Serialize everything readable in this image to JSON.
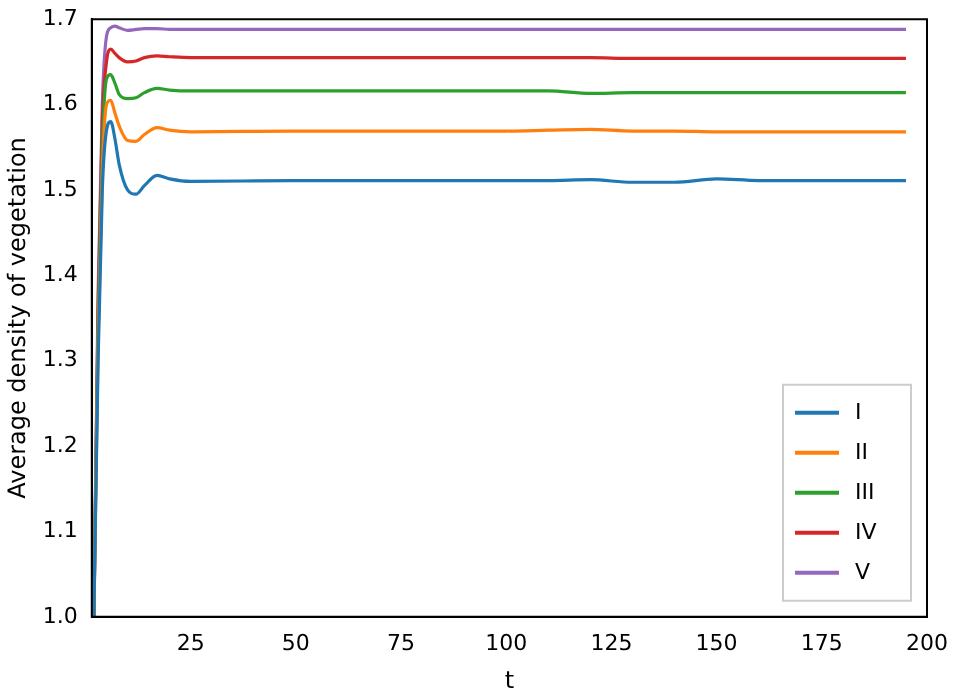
{
  "chart_data": {
    "type": "line",
    "xlabel": "t",
    "ylabel": "Average density of vegetation",
    "x": [
      2,
      3,
      4,
      5,
      6,
      7,
      8,
      10,
      12,
      14,
      17,
      20,
      25,
      50,
      100,
      110,
      120,
      130,
      140,
      150,
      160,
      195
    ],
    "xlim": [
      1.5,
      200
    ],
    "xticks": [
      25,
      50,
      75,
      100,
      125,
      150,
      175,
      200
    ],
    "ylim": [
      1.0,
      1.7
    ],
    "yticks": [
      {
        "value": 1.0,
        "label": "1.0"
      },
      {
        "value": 1.1,
        "label": "1.1"
      },
      {
        "value": 1.2,
        "label": "1.2"
      },
      {
        "value": 1.3,
        "label": "1.3"
      },
      {
        "value": 1.4,
        "label": "1.4"
      },
      {
        "value": 1.5,
        "label": "1.5"
      },
      {
        "value": 1.6,
        "label": "1.6"
      },
      {
        "value": 1.7,
        "label": "1.7"
      }
    ],
    "legend": "bottom right",
    "grid": false,
    "marker": "none",
    "line_style": "solid",
    "series": [
      {
        "name": "I",
        "color": "#1f77b4",
        "values": [
          1.0,
          1.3,
          1.5,
          1.57,
          1.58,
          1.56,
          1.53,
          1.5,
          1.495,
          1.505,
          1.517,
          1.513,
          1.51,
          1.511,
          1.511,
          1.511,
          1.512,
          1.509,
          1.509,
          1.513,
          1.511,
          1.511
        ]
      },
      {
        "name": "II",
        "color": "#ff7f0e",
        "values": [
          1.0,
          1.32,
          1.52,
          1.6,
          1.605,
          1.59,
          1.575,
          1.558,
          1.557,
          1.565,
          1.573,
          1.57,
          1.568,
          1.569,
          1.569,
          1.57,
          1.571,
          1.569,
          1.569,
          1.568,
          1.568,
          1.568
        ]
      },
      {
        "name": "III",
        "color": "#2ca02c",
        "values": [
          1.0,
          1.34,
          1.55,
          1.63,
          1.635,
          1.625,
          1.612,
          1.607,
          1.608,
          1.614,
          1.619,
          1.617,
          1.616,
          1.616,
          1.616,
          1.616,
          1.613,
          1.614,
          1.614,
          1.614,
          1.614,
          1.614
        ]
      },
      {
        "name": "IV",
        "color": "#d62728",
        "values": [
          1.0,
          1.36,
          1.58,
          1.65,
          1.665,
          1.66,
          1.655,
          1.65,
          1.651,
          1.655,
          1.657,
          1.656,
          1.655,
          1.655,
          1.655,
          1.655,
          1.655,
          1.654,
          1.654,
          1.654,
          1.654,
          1.654
        ]
      },
      {
        "name": "V",
        "color": "#9467bd",
        "values": [
          1.0,
          1.38,
          1.6,
          1.68,
          1.69,
          1.692,
          1.69,
          1.687,
          1.688,
          1.689,
          1.689,
          1.688,
          1.688,
          1.688,
          1.688,
          1.688,
          1.688,
          1.688,
          1.688,
          1.688,
          1.688,
          1.688
        ]
      }
    ]
  }
}
